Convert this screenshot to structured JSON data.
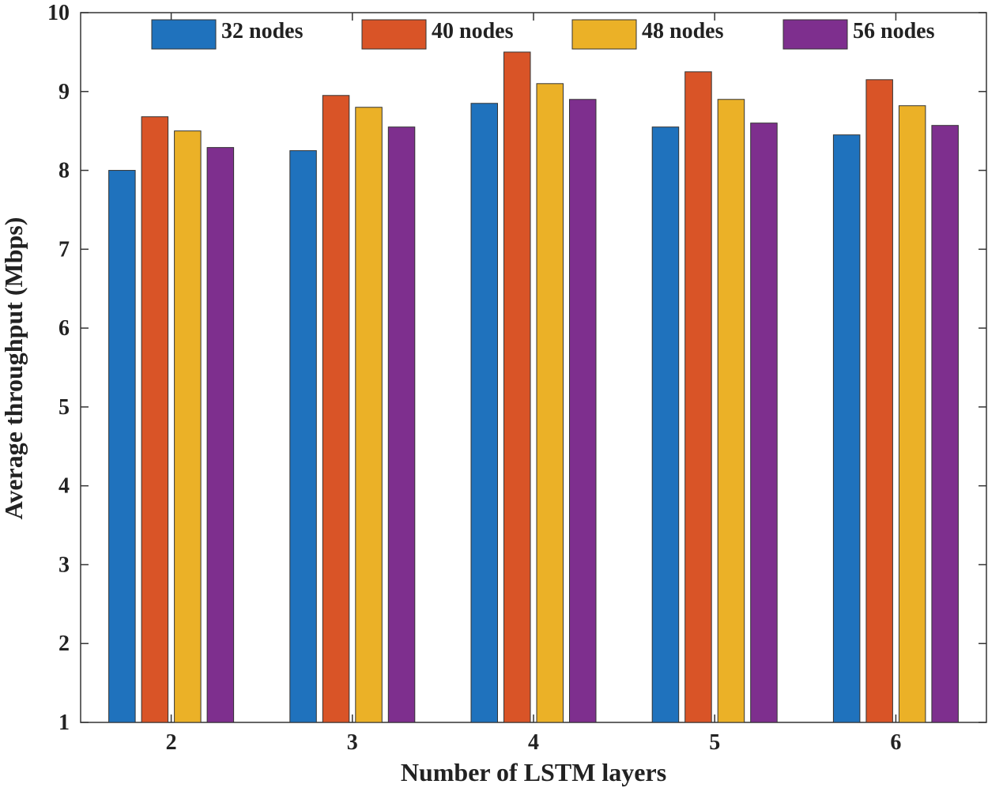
{
  "chart_data": {
    "type": "bar",
    "title": "",
    "xlabel": "Number of LSTM layers",
    "ylabel": "Average throughput (Mbps)",
    "categories": [
      "2",
      "3",
      "4",
      "5",
      "6"
    ],
    "ylim": [
      1,
      10
    ],
    "yticks": [
      "1",
      "2",
      "3",
      "4",
      "5",
      "6",
      "7",
      "8",
      "9",
      "10"
    ],
    "legend_position": "top",
    "series": [
      {
        "name": "32 nodes",
        "color": "#1f72bd",
        "values": [
          8.0,
          8.25,
          8.85,
          8.55,
          8.45
        ]
      },
      {
        "name": "40 nodes",
        "color": "#d95427",
        "values": [
          8.68,
          8.95,
          9.5,
          9.25,
          9.15
        ]
      },
      {
        "name": "48 nodes",
        "color": "#ebb127",
        "values": [
          8.5,
          8.8,
          9.1,
          8.9,
          8.82
        ]
      },
      {
        "name": "56 nodes",
        "color": "#7e2f8e",
        "values": [
          8.29,
          8.55,
          8.9,
          8.6,
          8.57
        ]
      }
    ]
  }
}
